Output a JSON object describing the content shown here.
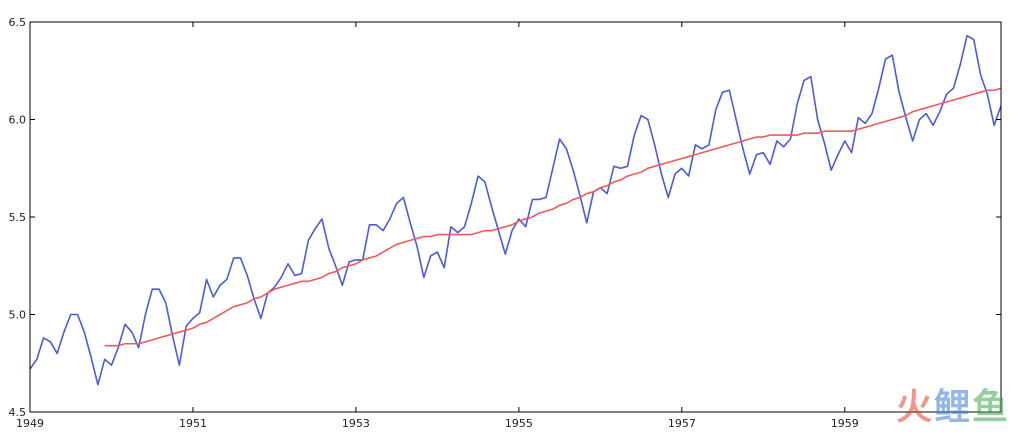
{
  "chart_data": {
    "type": "line",
    "title": "",
    "xlabel": "",
    "ylabel": "",
    "xlim": [
      1949.0,
      1960.917
    ],
    "ylim": [
      4.5,
      6.5
    ],
    "xticks": [
      1949,
      1951,
      1953,
      1955,
      1957,
      1959
    ],
    "xtick_labels": [
      "1949",
      "1951",
      "1953",
      "1955",
      "1957",
      "1959"
    ],
    "yticks": [
      4.5,
      5.0,
      5.5,
      6.0,
      6.5
    ],
    "ytick_labels": [
      "4.5",
      "5.0",
      "5.5",
      "6.0",
      "6.5"
    ],
    "grid": false,
    "x_start": 1949.0,
    "x_step": 0.08333,
    "series": [
      {
        "color": "#4a5bdc",
        "values": [
          4.72,
          4.77,
          4.88,
          4.86,
          4.8,
          4.91,
          5.0,
          5.0,
          4.91,
          4.78,
          4.64,
          4.77,
          4.74,
          4.83,
          4.95,
          4.91,
          4.83,
          5.0,
          5.13,
          5.13,
          5.06,
          4.89,
          4.74,
          4.94,
          4.98,
          5.01,
          5.18,
          5.09,
          5.15,
          5.18,
          5.29,
          5.29,
          5.2,
          5.08,
          4.98,
          5.11,
          5.14,
          5.19,
          5.26,
          5.2,
          5.21,
          5.38,
          5.44,
          5.49,
          5.34,
          5.25,
          5.15,
          5.27,
          5.28,
          5.28,
          5.46,
          5.46,
          5.43,
          5.49,
          5.57,
          5.6,
          5.47,
          5.35,
          5.19,
          5.3,
          5.32,
          5.24,
          5.45,
          5.42,
          5.45,
          5.57,
          5.71,
          5.68,
          5.55,
          5.43,
          5.31,
          5.43,
          5.49,
          5.45,
          5.59,
          5.59,
          5.6,
          5.75,
          5.9,
          5.85,
          5.74,
          5.61,
          5.47,
          5.63,
          5.65,
          5.62,
          5.76,
          5.75,
          5.76,
          5.92,
          6.02,
          6.0,
          5.87,
          5.72,
          5.6,
          5.72,
          5.75,
          5.71,
          5.87,
          5.85,
          5.87,
          6.05,
          6.14,
          6.15,
          6.0,
          5.85,
          5.72,
          5.82,
          5.83,
          5.77,
          5.89,
          5.86,
          5.9,
          6.08,
          6.2,
          6.22,
          6.0,
          5.88,
          5.74,
          5.82,
          5.89,
          5.83,
          6.01,
          5.98,
          6.03,
          6.16,
          6.31,
          6.33,
          6.14,
          6.01,
          5.89,
          6.0,
          6.03,
          5.97,
          6.04,
          6.13,
          6.16,
          6.28,
          6.43,
          6.41,
          6.23,
          6.13,
          5.97,
          6.07
        ]
      },
      {
        "color": "#f05a5a",
        "offset": 11,
        "values": [
          4.84,
          4.84,
          4.84,
          4.85,
          4.85,
          4.85,
          4.86,
          4.87,
          4.88,
          4.89,
          4.9,
          4.91,
          4.92,
          4.93,
          4.95,
          4.96,
          4.98,
          5.0,
          5.02,
          5.04,
          5.05,
          5.06,
          5.08,
          5.09,
          5.11,
          5.13,
          5.14,
          5.15,
          5.16,
          5.17,
          5.17,
          5.18,
          5.19,
          5.21,
          5.22,
          5.24,
          5.25,
          5.26,
          5.28,
          5.29,
          5.3,
          5.32,
          5.34,
          5.36,
          5.37,
          5.38,
          5.39,
          5.4,
          5.4,
          5.41,
          5.41,
          5.41,
          5.41,
          5.41,
          5.41,
          5.42,
          5.43,
          5.43,
          5.44,
          5.45,
          5.46,
          5.48,
          5.49,
          5.5,
          5.52,
          5.53,
          5.54,
          5.56,
          5.57,
          5.59,
          5.6,
          5.62,
          5.63,
          5.65,
          5.66,
          5.68,
          5.69,
          5.71,
          5.72,
          5.73,
          5.75,
          5.76,
          5.77,
          5.78,
          5.79,
          5.8,
          5.81,
          5.82,
          5.83,
          5.84,
          5.85,
          5.86,
          5.87,
          5.88,
          5.89,
          5.9,
          5.91,
          5.91,
          5.92,
          5.92,
          5.92,
          5.92,
          5.92,
          5.93,
          5.93,
          5.93,
          5.94,
          5.94,
          5.94,
          5.94,
          5.94,
          5.95,
          5.96,
          5.97,
          5.98,
          5.99,
          6.0,
          6.01,
          6.02,
          6.04,
          6.05,
          6.06,
          6.07,
          6.08,
          6.09,
          6.1,
          6.11,
          6.12,
          6.13,
          6.14,
          6.15,
          6.15,
          6.16
        ]
      }
    ]
  },
  "watermark": {
    "part1": "火",
    "part2": "鲤",
    "part3": "鱼"
  }
}
